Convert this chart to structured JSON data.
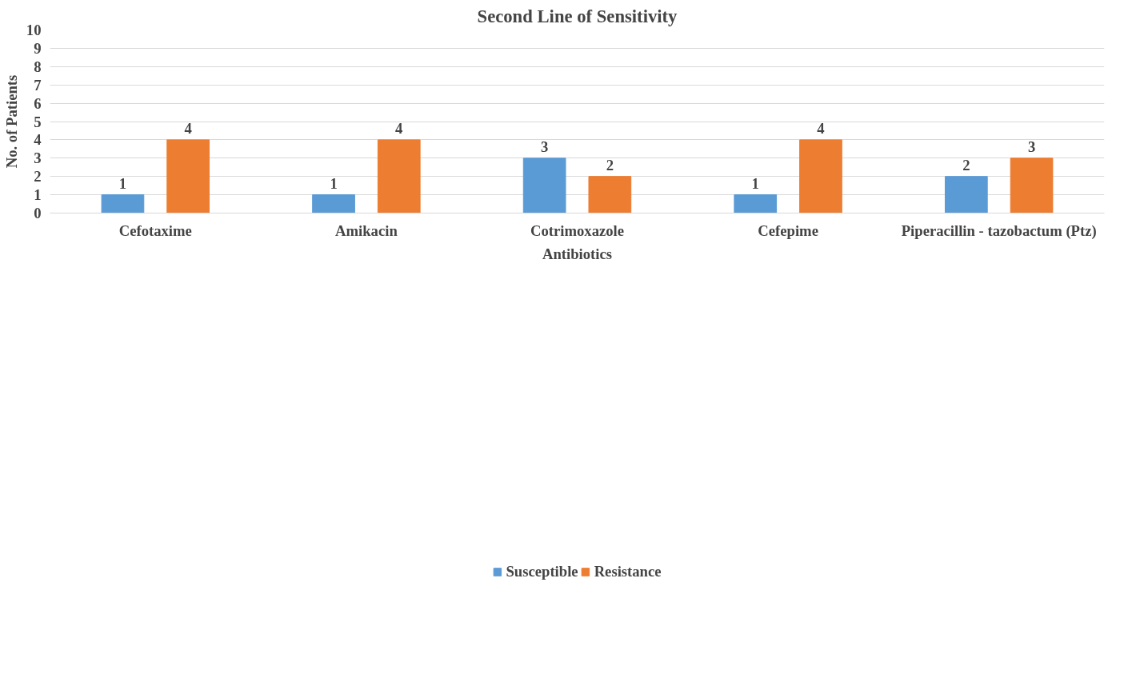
{
  "chart_data": {
    "type": "bar",
    "title": "Second Line of Sensitivity",
    "xlabel": "Antibiotics",
    "ylabel": "No. of Patients",
    "categories": [
      "Cefotaxime",
      "Amikacin",
      "Cotrimoxazole",
      "Cefepime",
      "Piperacillin - tazobactum (Ptz)"
    ],
    "series": [
      {
        "name": "Susceptible",
        "color": "#5b9bd5",
        "values": [
          1,
          1,
          3,
          1,
          2
        ]
      },
      {
        "name": "Resistance",
        "color": "#ed7d31",
        "values": [
          4,
          4,
          2,
          4,
          3
        ]
      }
    ],
    "ylim": [
      0,
      10
    ],
    "yticks": [
      0,
      1,
      2,
      3,
      4,
      5,
      6,
      7,
      8,
      9,
      10
    ],
    "grid": "y",
    "legend": "bottom",
    "data_labels": true
  }
}
